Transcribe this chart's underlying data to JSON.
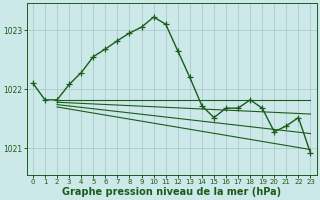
{
  "background_color": "#cce8e8",
  "grid_color": "#aacccc",
  "line_color": "#1a5c1a",
  "xlabel": "Graphe pression niveau de la mer (hPa)",
  "xlabel_fontsize": 7,
  "ylabel_ticks": [
    1021,
    1022,
    1023
  ],
  "xlim": [
    -0.5,
    23.5
  ],
  "ylim": [
    1020.55,
    1023.45
  ],
  "xtick_fontsize": 5,
  "ytick_fontsize": 5.5,
  "main_series_x": [
    0,
    1,
    2,
    3,
    4,
    5,
    6,
    7,
    8,
    9,
    10,
    11,
    12,
    13,
    14,
    15,
    16,
    17,
    18,
    19,
    20,
    21,
    22,
    23
  ],
  "main_series_y": [
    1022.1,
    1021.82,
    1021.82,
    1022.08,
    1022.28,
    1022.55,
    1022.68,
    1022.82,
    1022.95,
    1023.05,
    1023.22,
    1023.1,
    1022.65,
    1022.2,
    1021.72,
    1021.52,
    1021.68,
    1021.68,
    1021.82,
    1021.68,
    1021.28,
    1021.38,
    1021.52,
    1020.92
  ],
  "extra_lines": [
    {
      "x": [
        2,
        23
      ],
      "y": [
        1021.82,
        1021.82
      ]
    },
    {
      "x": [
        2,
        23
      ],
      "y": [
        1021.78,
        1021.58
      ]
    },
    {
      "x": [
        2,
        23
      ],
      "y": [
        1021.74,
        1021.25
      ]
    },
    {
      "x": [
        2,
        23
      ],
      "y": [
        1021.7,
        1020.98
      ]
    }
  ]
}
